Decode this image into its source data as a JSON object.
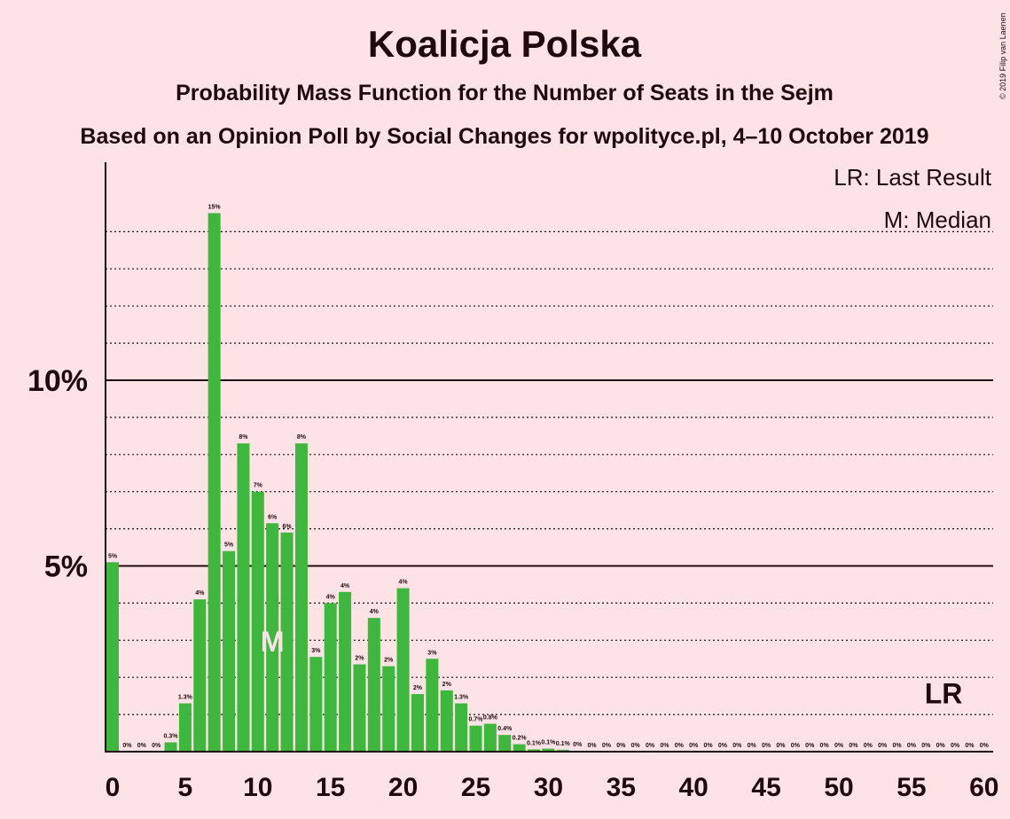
{
  "colors": {
    "background": "#fde3e6",
    "bar": "#3db83d",
    "text": "#200a0f",
    "median_label": "#fde3e6"
  },
  "chart_data": {
    "type": "bar",
    "title": "Koalicja Polska",
    "subtitle": "Probability Mass Function for the Number of Seats in the Sejm",
    "subtitle2": "Based on an Opinion Poll by Social Changes for wpolityce.pl, 4–10 October 2019",
    "copyright": "© 2019 Filip van Laenen",
    "legend": {
      "lr": "LR: Last Result",
      "median": "M: Median",
      "placement": "top-right"
    },
    "xlim": [
      0,
      60
    ],
    "ylim": [
      0,
      15.9
    ],
    "x_ticks": [
      0,
      5,
      10,
      15,
      20,
      25,
      30,
      35,
      40,
      45,
      50,
      55,
      60
    ],
    "x_tick_labels": [
      "0",
      "5",
      "10",
      "15",
      "20",
      "25",
      "30",
      "35",
      "40",
      "45",
      "50",
      "55",
      "60"
    ],
    "y_ticks_major": [
      5,
      10
    ],
    "y_tick_labels": [
      "5%",
      "10%"
    ],
    "y_minor_step": 1,
    "median_seat": 11,
    "median_marker": "M",
    "last_result_seat": 58,
    "last_result_marker": "LR",
    "seats": [
      0,
      1,
      2,
      3,
      4,
      5,
      6,
      7,
      8,
      9,
      10,
      11,
      12,
      13,
      14,
      15,
      16,
      17,
      18,
      19,
      20,
      21,
      22,
      23,
      24,
      25,
      26,
      27,
      28,
      29,
      30,
      31,
      32,
      33,
      34,
      35,
      36,
      37,
      38,
      39,
      40,
      41,
      42,
      43,
      44,
      45,
      46,
      47,
      48,
      49,
      50,
      51,
      52,
      53,
      54,
      55,
      56,
      57,
      58,
      59,
      60
    ],
    "values": [
      5.1,
      0,
      0,
      0,
      0.25,
      1.3,
      4.1,
      14.5,
      5.4,
      8.3,
      7.0,
      6.15,
      5.9,
      8.3,
      2.55,
      4.0,
      4.3,
      2.35,
      3.6,
      2.3,
      4.4,
      1.55,
      2.5,
      1.65,
      1.3,
      0.7,
      0.75,
      0.45,
      0.2,
      0.06,
      0.08,
      0.05,
      0.02,
      0,
      0,
      0,
      0,
      0,
      0,
      0,
      0,
      0,
      0,
      0,
      0,
      0,
      0,
      0,
      0,
      0,
      0,
      0,
      0,
      0,
      0,
      0,
      0,
      0,
      0,
      0,
      0
    ],
    "data_labels": [
      "5%",
      "0%",
      "0%",
      "0%",
      "0.3%",
      "1.3%",
      "4%",
      "15%",
      "5%",
      "8%",
      "7%",
      "6%",
      "6%",
      "8%",
      "3%",
      "4%",
      "4%",
      "2%",
      "4%",
      "2%",
      "4%",
      "2%",
      "3%",
      "2%",
      "1.3%",
      "0.7%",
      "0.8%",
      "0.4%",
      "0.2%",
      "0.1%",
      "0.1%",
      "0.1%",
      "0%",
      "0%",
      "0%",
      "0%",
      "0%",
      "0%",
      "0%",
      "0%",
      "0%",
      "0%",
      "0%",
      "0%",
      "0%",
      "0%",
      "0%",
      "0%",
      "0%",
      "0%",
      "0%",
      "0%",
      "0%",
      "0%",
      "0%",
      "0%",
      "0%",
      "0%",
      "0%",
      "0%",
      "0%"
    ]
  }
}
